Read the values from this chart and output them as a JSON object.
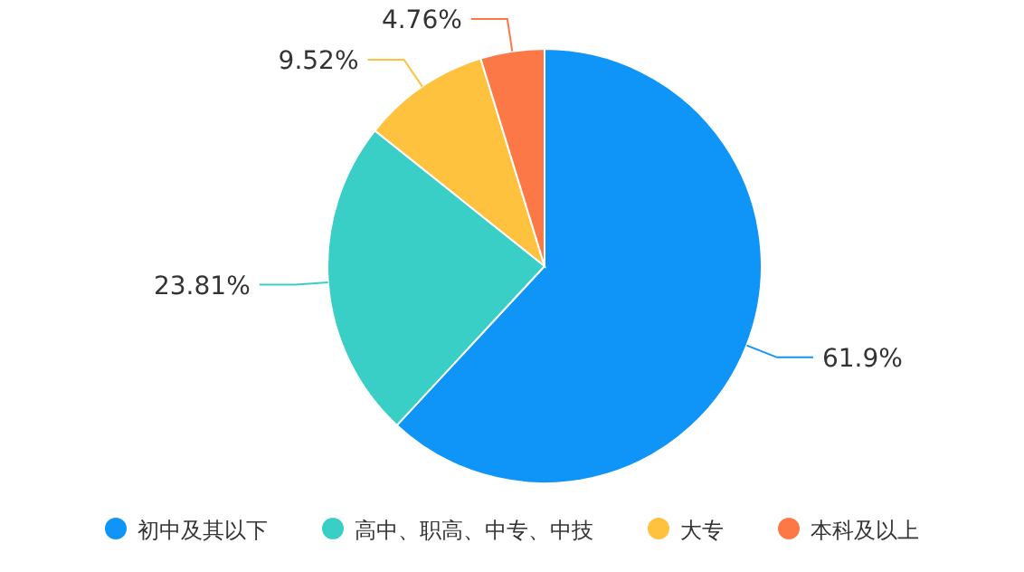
{
  "chart_data": {
    "type": "pie",
    "categories": [
      "初中及其以下",
      "高中、职高、中专、中技",
      "大专",
      "本科及以上"
    ],
    "values": [
      61.9,
      23.81,
      9.52,
      4.76
    ],
    "colors": [
      "#0f94f7",
      "#3acfc6",
      "#ffc23e",
      "#fc7846"
    ],
    "value_labels": [
      "61.9%",
      "23.81%",
      "9.52%",
      "4.76%"
    ],
    "legend": "bottom",
    "marker": "circle"
  }
}
